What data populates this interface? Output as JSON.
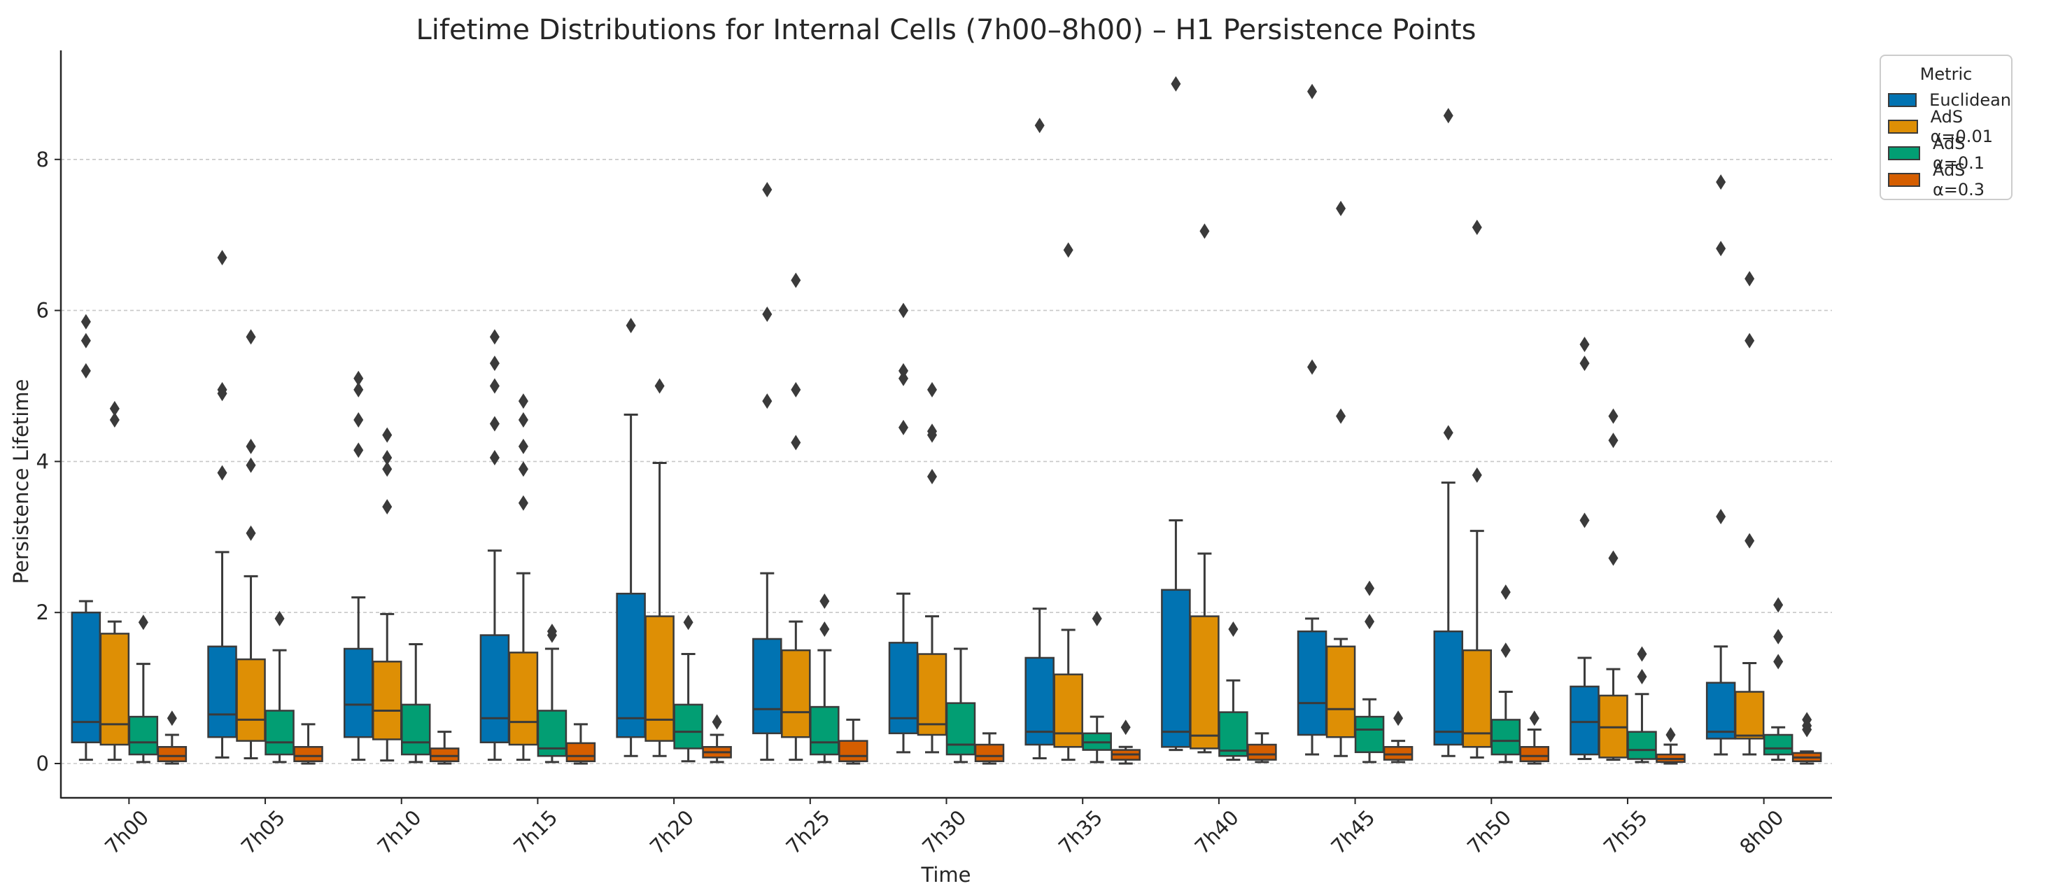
{
  "chart_data": {
    "type": "boxplot",
    "title": "Lifetime Distributions for Internal Cells (7h00–8h00) – H1 Persistence Points",
    "xlabel": "Time",
    "ylabel": "Persistence Lifetime",
    "ylim": [
      -0.45,
      9.35
    ],
    "yticks": [
      0,
      2,
      4,
      6,
      8
    ],
    "grid": "y-dashed",
    "legend": {
      "title": "Metric",
      "placement": "outside-top-right"
    },
    "categories": [
      "7h00",
      "7h05",
      "7h10",
      "7h15",
      "7h20",
      "7h25",
      "7h30",
      "7h35",
      "7h40",
      "7h45",
      "7h50",
      "7h55",
      "8h00"
    ],
    "series": [
      {
        "name": "Euclidean",
        "color": "#0173b2",
        "boxes": [
          {
            "whislo": 0.05,
            "q1": 0.28,
            "med": 0.55,
            "q3": 2.0,
            "whishi": 2.15,
            "fliers": [
              5.2,
              5.6,
              5.85
            ]
          },
          {
            "whislo": 0.08,
            "q1": 0.35,
            "med": 0.65,
            "q3": 1.55,
            "whishi": 2.8,
            "fliers": [
              3.85,
              4.9,
              4.95,
              6.7
            ]
          },
          {
            "whislo": 0.05,
            "q1": 0.35,
            "med": 0.78,
            "q3": 1.52,
            "whishi": 2.2,
            "fliers": [
              4.15,
              4.55,
              4.95,
              5.1
            ]
          },
          {
            "whislo": 0.05,
            "q1": 0.28,
            "med": 0.6,
            "q3": 1.7,
            "whishi": 2.82,
            "fliers": [
              4.05,
              4.5,
              5.0,
              5.3,
              5.65
            ]
          },
          {
            "whislo": 0.1,
            "q1": 0.35,
            "med": 0.6,
            "q3": 2.25,
            "whishi": 4.62,
            "fliers": [
              5.8
            ]
          },
          {
            "whislo": 0.05,
            "q1": 0.4,
            "med": 0.72,
            "q3": 1.65,
            "whishi": 2.52,
            "fliers": [
              4.8,
              5.95,
              7.6
            ]
          },
          {
            "whislo": 0.15,
            "q1": 0.4,
            "med": 0.6,
            "q3": 1.6,
            "whishi": 2.25,
            "fliers": [
              4.45,
              5.1,
              5.2,
              6.0
            ]
          },
          {
            "whislo": 0.07,
            "q1": 0.25,
            "med": 0.42,
            "q3": 1.4,
            "whishi": 2.05,
            "fliers": [
              8.45
            ]
          },
          {
            "whislo": 0.18,
            "q1": 0.22,
            "med": 0.42,
            "q3": 2.3,
            "whishi": 3.22,
            "fliers": [
              9.0
            ]
          },
          {
            "whislo": 0.12,
            "q1": 0.38,
            "med": 0.8,
            "q3": 1.75,
            "whishi": 1.92,
            "fliers": [
              5.25,
              8.9
            ]
          },
          {
            "whislo": 0.1,
            "q1": 0.25,
            "med": 0.42,
            "q3": 1.75,
            "whishi": 3.72,
            "fliers": [
              4.38,
              8.58
            ]
          },
          {
            "whislo": 0.06,
            "q1": 0.12,
            "med": 0.55,
            "q3": 1.02,
            "whishi": 1.4,
            "fliers": [
              3.22,
              5.3,
              5.55
            ]
          },
          {
            "whislo": 0.12,
            "q1": 0.33,
            "med": 0.42,
            "q3": 1.07,
            "whishi": 1.55,
            "fliers": [
              3.27,
              6.82,
              7.7
            ]
          }
        ]
      },
      {
        "name": "AdS α=0.01",
        "color": "#de8f05",
        "boxes": [
          {
            "whislo": 0.05,
            "q1": 0.25,
            "med": 0.52,
            "q3": 1.72,
            "whishi": 1.88,
            "fliers": [
              4.55,
              4.7
            ]
          },
          {
            "whislo": 0.07,
            "q1": 0.3,
            "med": 0.58,
            "q3": 1.38,
            "whishi": 2.48,
            "fliers": [
              3.05,
              3.95,
              4.2,
              5.65
            ]
          },
          {
            "whislo": 0.04,
            "q1": 0.32,
            "med": 0.7,
            "q3": 1.35,
            "whishi": 1.98,
            "fliers": [
              3.4,
              3.9,
              4.05,
              4.35
            ]
          },
          {
            "whislo": 0.05,
            "q1": 0.25,
            "med": 0.55,
            "q3": 1.47,
            "whishi": 2.52,
            "fliers": [
              3.45,
              3.9,
              4.2,
              4.55,
              4.8
            ]
          },
          {
            "whislo": 0.1,
            "q1": 0.3,
            "med": 0.58,
            "q3": 1.95,
            "whishi": 3.98,
            "fliers": [
              5.0
            ]
          },
          {
            "whislo": 0.05,
            "q1": 0.35,
            "med": 0.68,
            "q3": 1.5,
            "whishi": 1.88,
            "fliers": [
              4.25,
              4.95,
              6.4
            ]
          },
          {
            "whislo": 0.15,
            "q1": 0.38,
            "med": 0.52,
            "q3": 1.45,
            "whishi": 1.95,
            "fliers": [
              3.8,
              4.35,
              4.4,
              4.95
            ]
          },
          {
            "whislo": 0.05,
            "q1": 0.22,
            "med": 0.4,
            "q3": 1.18,
            "whishi": 1.77,
            "fliers": [
              6.8
            ]
          },
          {
            "whislo": 0.15,
            "q1": 0.2,
            "med": 0.37,
            "q3": 1.95,
            "whishi": 2.78,
            "fliers": [
              7.05
            ]
          },
          {
            "whislo": 0.1,
            "q1": 0.35,
            "med": 0.72,
            "q3": 1.55,
            "whishi": 1.65,
            "fliers": [
              4.6,
              7.35
            ]
          },
          {
            "whislo": 0.08,
            "q1": 0.22,
            "med": 0.4,
            "q3": 1.5,
            "whishi": 3.08,
            "fliers": [
              3.82,
              7.1
            ]
          },
          {
            "whislo": 0.05,
            "q1": 0.08,
            "med": 0.48,
            "q3": 0.9,
            "whishi": 1.25,
            "fliers": [
              2.72,
              4.28,
              4.6
            ]
          },
          {
            "whislo": 0.12,
            "q1": 0.33,
            "med": 0.37,
            "q3": 0.95,
            "whishi": 1.33,
            "fliers": [
              2.95,
              5.6,
              6.42
            ]
          }
        ]
      },
      {
        "name": "AdS α=0.1",
        "color": "#029e73",
        "boxes": [
          {
            "whislo": 0.02,
            "q1": 0.12,
            "med": 0.28,
            "q3": 0.62,
            "whishi": 1.32,
            "fliers": [
              1.87
            ]
          },
          {
            "whislo": 0.02,
            "q1": 0.12,
            "med": 0.28,
            "q3": 0.7,
            "whishi": 1.5,
            "fliers": [
              1.92
            ]
          },
          {
            "whislo": 0.02,
            "q1": 0.12,
            "med": 0.28,
            "q3": 0.78,
            "whishi": 1.58,
            "fliers": []
          },
          {
            "whislo": 0.02,
            "q1": 0.1,
            "med": 0.2,
            "q3": 0.7,
            "whishi": 1.52,
            "fliers": [
              1.7,
              1.75
            ]
          },
          {
            "whislo": 0.03,
            "q1": 0.2,
            "med": 0.42,
            "q3": 0.78,
            "whishi": 1.45,
            "fliers": [
              1.87
            ]
          },
          {
            "whislo": 0.02,
            "q1": 0.12,
            "med": 0.28,
            "q3": 0.75,
            "whishi": 1.5,
            "fliers": [
              1.78,
              2.15
            ]
          },
          {
            "whislo": 0.02,
            "q1": 0.12,
            "med": 0.25,
            "q3": 0.8,
            "whishi": 1.52,
            "fliers": []
          },
          {
            "whislo": 0.02,
            "q1": 0.18,
            "med": 0.28,
            "q3": 0.4,
            "whishi": 0.62,
            "fliers": [
              1.92
            ]
          },
          {
            "whislo": 0.05,
            "q1": 0.1,
            "med": 0.17,
            "q3": 0.68,
            "whishi": 1.1,
            "fliers": [
              1.78
            ]
          },
          {
            "whislo": 0.02,
            "q1": 0.15,
            "med": 0.45,
            "q3": 0.62,
            "whishi": 0.85,
            "fliers": [
              1.88,
              2.32
            ]
          },
          {
            "whislo": 0.02,
            "q1": 0.12,
            "med": 0.3,
            "q3": 0.58,
            "whishi": 0.95,
            "fliers": [
              1.5,
              2.27
            ]
          },
          {
            "whislo": 0.02,
            "q1": 0.06,
            "med": 0.18,
            "q3": 0.42,
            "whishi": 0.92,
            "fliers": [
              1.15,
              1.45
            ]
          },
          {
            "whislo": 0.05,
            "q1": 0.12,
            "med": 0.2,
            "q3": 0.38,
            "whishi": 0.48,
            "fliers": [
              1.35,
              1.68,
              2.1
            ]
          }
        ]
      },
      {
        "name": "AdS α=0.3",
        "color": "#d55e00",
        "boxes": [
          {
            "whislo": 0.0,
            "q1": 0.03,
            "med": 0.1,
            "q3": 0.22,
            "whishi": 0.38,
            "fliers": [
              0.6
            ]
          },
          {
            "whislo": 0.0,
            "q1": 0.03,
            "med": 0.1,
            "q3": 0.22,
            "whishi": 0.52,
            "fliers": []
          },
          {
            "whislo": 0.0,
            "q1": 0.03,
            "med": 0.1,
            "q3": 0.2,
            "whishi": 0.42,
            "fliers": []
          },
          {
            "whislo": 0.0,
            "q1": 0.03,
            "med": 0.1,
            "q3": 0.27,
            "whishi": 0.52,
            "fliers": []
          },
          {
            "whislo": 0.02,
            "q1": 0.08,
            "med": 0.15,
            "q3": 0.22,
            "whishi": 0.38,
            "fliers": [
              0.55
            ]
          },
          {
            "whislo": 0.0,
            "q1": 0.03,
            "med": 0.1,
            "q3": 0.3,
            "whishi": 0.58,
            "fliers": []
          },
          {
            "whislo": 0.0,
            "q1": 0.03,
            "med": 0.1,
            "q3": 0.25,
            "whishi": 0.4,
            "fliers": []
          },
          {
            "whislo": 0.0,
            "q1": 0.05,
            "med": 0.12,
            "q3": 0.18,
            "whishi": 0.22,
            "fliers": [
              0.48
            ]
          },
          {
            "whislo": 0.02,
            "q1": 0.05,
            "med": 0.12,
            "q3": 0.25,
            "whishi": 0.4,
            "fliers": []
          },
          {
            "whislo": 0.02,
            "q1": 0.05,
            "med": 0.12,
            "q3": 0.22,
            "whishi": 0.3,
            "fliers": [
              0.6
            ]
          },
          {
            "whislo": 0.0,
            "q1": 0.03,
            "med": 0.1,
            "q3": 0.22,
            "whishi": 0.45,
            "fliers": [
              0.6
            ]
          },
          {
            "whislo": 0.0,
            "q1": 0.02,
            "med": 0.06,
            "q3": 0.12,
            "whishi": 0.25,
            "fliers": [
              0.38
            ]
          },
          {
            "whislo": 0.0,
            "q1": 0.03,
            "med": 0.08,
            "q3": 0.14,
            "whishi": 0.16,
            "fliers": [
              0.45,
              0.5,
              0.58
            ]
          }
        ]
      }
    ]
  }
}
